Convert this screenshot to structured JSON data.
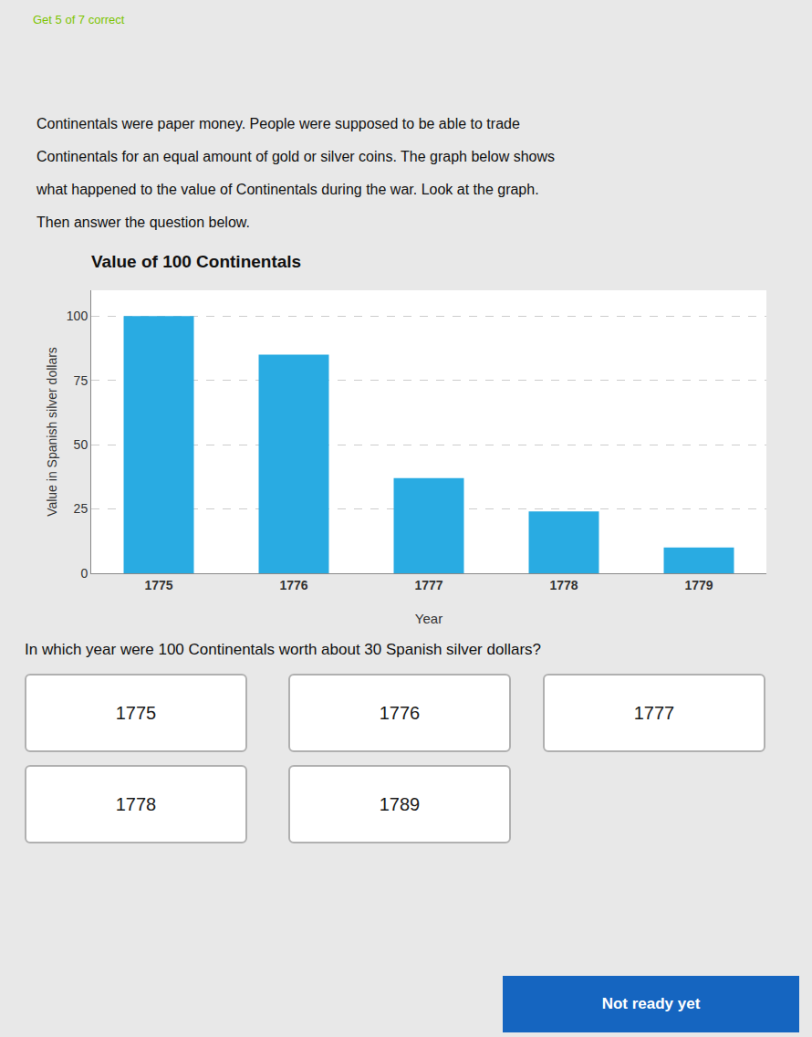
{
  "chart_data": {
    "type": "bar",
    "title": "Value of 100 Continentals",
    "xlabel": "Year",
    "ylabel": "Value in Spanish silver dollars",
    "categories": [
      "1775",
      "1776",
      "1777",
      "1778",
      "1779"
    ],
    "values": [
      100,
      85,
      37,
      24,
      10
    ],
    "color": "#29ABE2",
    "ylim": [
      0,
      110
    ],
    "yticks": [
      0,
      25,
      50,
      75,
      100
    ],
    "grid": true,
    "annotations": [
      "Get 5 of 7 correct",
      "Continentals were paper money. People were supposed to be able to trade",
      "Continentals for an equal amount of gold or silver coins. The graph below shows",
      "what happened to the value of Continentals during the war. Look at the graph.",
      "Then answer the question below.",
      "In which year were 100 Continentals worth about 30 Spanish silver dollars?",
      "1775",
      "1776",
      "1777",
      "1778",
      "1789",
      "Not ready yet"
    ]
  }
}
